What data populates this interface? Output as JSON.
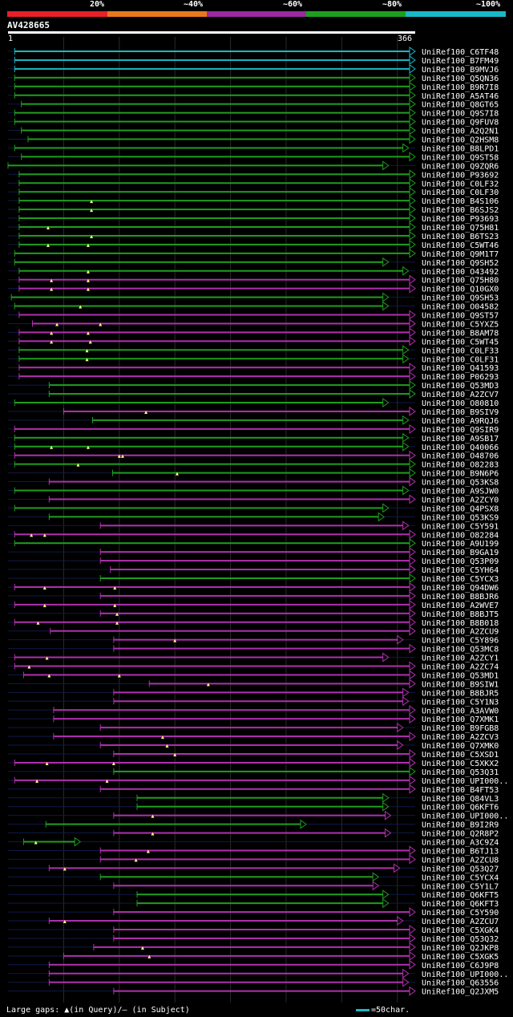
{
  "legend": {
    "labels": [
      "20%",
      "~40%",
      "~60%",
      "~80%",
      "~100%"
    ],
    "colors": [
      "#e8202a",
      "#e8781c",
      "#9a2aa0",
      "#1e9e1e",
      "#19b8c6"
    ]
  },
  "query": {
    "name": "AV428665",
    "start_label": "1",
    "end_label": "366"
  },
  "chart_data": {
    "type": "alignment",
    "query_length": 366,
    "color_classes": {
      "c": "#19b8c6",
      "g": "#1e9e1e",
      "m": "#b030b0"
    },
    "hits": [
      {
        "id": "UniRef100_C6TF48",
        "s": 6,
        "e": 366,
        "c": "c"
      },
      {
        "id": "UniRef100_B7FM49",
        "s": 6,
        "e": 366,
        "c": "c"
      },
      {
        "id": "UniRef100_B9MVJ6",
        "s": 6,
        "e": 366,
        "c": "c"
      },
      {
        "id": "UniRef100_Q5QN36",
        "s": 6,
        "e": 366,
        "c": "g"
      },
      {
        "id": "UniRef100_B9R7I8",
        "s": 6,
        "e": 366,
        "c": "g"
      },
      {
        "id": "UniRef100_A5AT46",
        "s": 6,
        "e": 366,
        "c": "g"
      },
      {
        "id": "UniRef100_Q8GT65",
        "s": 12,
        "e": 366,
        "c": "g"
      },
      {
        "id": "UniRef100_Q9S7I8",
        "s": 6,
        "e": 366,
        "c": "g"
      },
      {
        "id": "UniRef100_Q9FUV8",
        "s": 6,
        "e": 366,
        "c": "g"
      },
      {
        "id": "UniRef100_A2Q2N1",
        "s": 12,
        "e": 366,
        "c": "g"
      },
      {
        "id": "UniRef100_Q2HSM8",
        "s": 18,
        "e": 366,
        "c": "g"
      },
      {
        "id": "UniRef100_B8LPD1",
        "s": 6,
        "e": 360,
        "c": "g"
      },
      {
        "id": "UniRef100_Q9ST58",
        "s": 12,
        "e": 366,
        "c": "g"
      },
      {
        "id": "UniRef100_Q9ZQR6",
        "s": 0,
        "e": 342,
        "c": "g"
      },
      {
        "id": "UniRef100_P93692",
        "s": 10,
        "e": 366,
        "c": "g"
      },
      {
        "id": "UniRef100_C0LF32",
        "s": 10,
        "e": 366,
        "c": "g"
      },
      {
        "id": "UniRef100_C0LF30",
        "s": 10,
        "e": 366,
        "c": "g"
      },
      {
        "id": "UniRef100_B4S106",
        "s": 10,
        "e": 366,
        "c": "g",
        "gaps": [
          75
        ]
      },
      {
        "id": "UniRef100_B6SJS2",
        "s": 10,
        "e": 366,
        "c": "g",
        "gaps": [
          75
        ]
      },
      {
        "id": "UniRef100_P93693",
        "s": 10,
        "e": 366,
        "c": "g"
      },
      {
        "id": "UniRef100_Q75H81",
        "s": 10,
        "e": 366,
        "c": "g",
        "gaps": [
          36
        ]
      },
      {
        "id": "UniRef100_B6TS23",
        "s": 10,
        "e": 366,
        "c": "g",
        "gaps": [
          75
        ]
      },
      {
        "id": "UniRef100_C5WT46",
        "s": 10,
        "e": 366,
        "c": "g",
        "gaps": [
          36,
          72
        ]
      },
      {
        "id": "UniRef100_Q9M1T7",
        "s": 6,
        "e": 366,
        "c": "g"
      },
      {
        "id": "UniRef100_Q9SH52",
        "s": 6,
        "e": 342,
        "c": "g"
      },
      {
        "id": "UniRef100_O43492",
        "s": 10,
        "e": 360,
        "c": "g",
        "gaps": [
          72
        ]
      },
      {
        "id": "UniRef100_Q75H80",
        "s": 10,
        "e": 366,
        "c": "m",
        "gaps": [
          39,
          72
        ]
      },
      {
        "id": "UniRef100_Q10GX0",
        "s": 10,
        "e": 366,
        "c": "m",
        "gaps": [
          39,
          72
        ]
      },
      {
        "id": "UniRef100_Q9SH53",
        "s": 3,
        "e": 342,
        "c": "g"
      },
      {
        "id": "UniRef100_O04582",
        "s": 6,
        "e": 342,
        "c": "g",
        "gaps": [
          65
        ]
      },
      {
        "id": "UniRef100_Q9ST57",
        "s": 10,
        "e": 366,
        "c": "m"
      },
      {
        "id": "UniRef100_C5YXZ5",
        "s": 22,
        "e": 366,
        "c": "m",
        "gaps": [
          44,
          83
        ]
      },
      {
        "id": "UniRef100_B8AM78",
        "s": 10,
        "e": 366,
        "c": "m",
        "gaps": [
          39,
          72
        ]
      },
      {
        "id": "UniRef100_C5WT45",
        "s": 10,
        "e": 366,
        "c": "m",
        "gaps": [
          39,
          74
        ]
      },
      {
        "id": "UniRef100_C0LF33",
        "s": 10,
        "e": 360,
        "c": "g",
        "gaps": [
          71
        ]
      },
      {
        "id": "UniRef100_C0LF31",
        "s": 10,
        "e": 360,
        "c": "g",
        "gaps": [
          71
        ]
      },
      {
        "id": "UniRef100_Q41593",
        "s": 10,
        "e": 366,
        "c": "m"
      },
      {
        "id": "UniRef100_P06293",
        "s": 10,
        "e": 366,
        "c": "m"
      },
      {
        "id": "UniRef100_Q53MD3",
        "s": 37,
        "e": 366,
        "c": "g"
      },
      {
        "id": "UniRef100_A2ZCV7",
        "s": 37,
        "e": 366,
        "c": "g"
      },
      {
        "id": "UniRef100_O80810",
        "s": 6,
        "e": 342,
        "c": "g"
      },
      {
        "id": "UniRef100_B9SIV9",
        "s": 50,
        "e": 366,
        "c": "m",
        "gaps": [
          124
        ]
      },
      {
        "id": "UniRef100_A9RQJ6",
        "s": 76,
        "e": 360,
        "c": "g"
      },
      {
        "id": "UniRef100_Q9SIR9",
        "s": 6,
        "e": 366,
        "c": "m"
      },
      {
        "id": "UniRef100_A9SB17",
        "s": 6,
        "e": 360,
        "c": "g"
      },
      {
        "id": "UniRef100_Q40066",
        "s": 6,
        "e": 360,
        "c": "g",
        "gaps": [
          39,
          72
        ]
      },
      {
        "id": "UniRef100_O48706",
        "s": 6,
        "e": 366,
        "c": "m",
        "gaps": [
          100,
          103
        ]
      },
      {
        "id": "UniRef100_O82283",
        "s": 6,
        "e": 366,
        "c": "g",
        "gaps": [
          63
        ]
      },
      {
        "id": "UniRef100_B9N6P6",
        "s": 94,
        "e": 366,
        "c": "g",
        "gaps": [
          152
        ]
      },
      {
        "id": "UniRef100_Q53KS8",
        "s": 37,
        "e": 366,
        "c": "m"
      },
      {
        "id": "UniRef100_A9SJW0",
        "s": 6,
        "e": 360,
        "c": "g"
      },
      {
        "id": "UniRef100_A2ZCY0",
        "s": 37,
        "e": 366,
        "c": "m"
      },
      {
        "id": "UniRef100_Q4PSX8",
        "s": 6,
        "e": 342,
        "c": "g"
      },
      {
        "id": "UniRef100_Q53KS9",
        "s": 37,
        "e": 338,
        "c": "g"
      },
      {
        "id": "UniRef100_C5Y591",
        "s": 83,
        "e": 360,
        "c": "m"
      },
      {
        "id": "UniRef100_O82284",
        "s": 6,
        "e": 366,
        "c": "m",
        "gaps": [
          21,
          33
        ]
      },
      {
        "id": "UniRef100_A9U199",
        "s": 6,
        "e": 366,
        "c": "g"
      },
      {
        "id": "UniRef100_B9GA19",
        "s": 83,
        "e": 366,
        "c": "m"
      },
      {
        "id": "UniRef100_Q53P09",
        "s": 83,
        "e": 366,
        "c": "m"
      },
      {
        "id": "UniRef100_C5YH64",
        "s": 92,
        "e": 366,
        "c": "m"
      },
      {
        "id": "UniRef100_C5YCX3",
        "s": 83,
        "e": 366,
        "c": "g"
      },
      {
        "id": "UniRef100_Q94DW6",
        "s": 6,
        "e": 366,
        "c": "m",
        "gaps": [
          33,
          96
        ]
      },
      {
        "id": "UniRef100_B8BJR6",
        "s": 83,
        "e": 366,
        "c": "m"
      },
      {
        "id": "UniRef100_A2WVE7",
        "s": 6,
        "e": 366,
        "c": "m",
        "gaps": [
          33,
          96
        ]
      },
      {
        "id": "UniRef100_B8BJT5",
        "s": 83,
        "e": 366,
        "c": "m",
        "gaps": [
          98
        ]
      },
      {
        "id": "UniRef100_B8B018",
        "s": 6,
        "e": 366,
        "c": "m",
        "gaps": [
          27,
          98
        ]
      },
      {
        "id": "UniRef100_A2ZCU9",
        "s": 38,
        "e": 366,
        "c": "m"
      },
      {
        "id": "UniRef100_C5Y896",
        "s": 95,
        "e": 355,
        "c": "m",
        "gaps": [
          150
        ]
      },
      {
        "id": "UniRef100_Q53MC8",
        "s": 95,
        "e": 366,
        "c": "m"
      },
      {
        "id": "UniRef100_A2ZCY1",
        "s": 6,
        "e": 342,
        "c": "m",
        "gaps": [
          35
        ]
      },
      {
        "id": "UniRef100_A2ZC74",
        "s": 6,
        "e": 366,
        "c": "m",
        "gaps": [
          19
        ]
      },
      {
        "id": "UniRef100_Q53MD1",
        "s": 14,
        "e": 366,
        "c": "m",
        "gaps": [
          37,
          100
        ]
      },
      {
        "id": "UniRef100_B9SIW1",
        "s": 127,
        "e": 366,
        "c": "m",
        "gaps": [
          180
        ]
      },
      {
        "id": "UniRef100_B8BJR5",
        "s": 95,
        "e": 360,
        "c": "m"
      },
      {
        "id": "UniRef100_C5Y1N3",
        "s": 95,
        "e": 360,
        "c": "m"
      },
      {
        "id": "UniRef100_A3AVW0",
        "s": 41,
        "e": 366,
        "c": "m"
      },
      {
        "id": "UniRef100_Q7XMK1",
        "s": 41,
        "e": 366,
        "c": "m"
      },
      {
        "id": "UniRef100_B9FGB8",
        "s": 83,
        "e": 355,
        "c": "m"
      },
      {
        "id": "UniRef100_A2ZCV3",
        "s": 41,
        "e": 366,
        "c": "m",
        "gaps": [
          139
        ]
      },
      {
        "id": "UniRef100_Q7XMK0",
        "s": 83,
        "e": 355,
        "c": "m",
        "gaps": [
          143
        ]
      },
      {
        "id": "UniRef100_C5XSD1",
        "s": 95,
        "e": 366,
        "c": "m",
        "gaps": [
          150
        ]
      },
      {
        "id": "UniRef100_C5XKX2",
        "s": 6,
        "e": 366,
        "c": "m",
        "gaps": [
          35,
          95
        ]
      },
      {
        "id": "UniRef100_Q53Q31",
        "s": 95,
        "e": 366,
        "c": "g"
      },
      {
        "id": "UniRef100_UPI000..",
        "s": 6,
        "e": 366,
        "c": "m",
        "gaps": [
          26,
          89
        ]
      },
      {
        "id": "UniRef100_B4FT53",
        "s": 83,
        "e": 366,
        "c": "m"
      },
      {
        "id": "UniRef100_Q84VL3",
        "s": 116,
        "e": 342,
        "c": "g"
      },
      {
        "id": "UniRef100_Q6KFT6",
        "s": 116,
        "e": 342,
        "c": "g"
      },
      {
        "id": "UniRef100_UPI000..",
        "s": 95,
        "e": 344,
        "c": "m",
        "gaps": [
          130
        ]
      },
      {
        "id": "UniRef100_B9I2R9",
        "s": 34,
        "e": 268,
        "c": "g"
      },
      {
        "id": "UniRef100_Q2R8P2",
        "s": 95,
        "e": 344,
        "c": "m",
        "gaps": [
          130
        ]
      },
      {
        "id": "UniRef100_A3C9Z4",
        "s": 14,
        "e": 65,
        "c": "g",
        "gaps": [
          25
        ]
      },
      {
        "id": "UniRef100_B6TJ13",
        "s": 83,
        "e": 366,
        "c": "m",
        "gaps": [
          126
        ]
      },
      {
        "id": "UniRef100_A2ZCU8",
        "s": 83,
        "e": 366,
        "c": "m",
        "gaps": [
          115
        ]
      },
      {
        "id": "UniRef100_Q53Q27",
        "s": 37,
        "e": 352,
        "c": "m",
        "gaps": [
          51
        ]
      },
      {
        "id": "UniRef100_C5YCX4",
        "s": 83,
        "e": 333,
        "c": "g"
      },
      {
        "id": "UniRef100_C5Y1L7",
        "s": 95,
        "e": 333,
        "c": "m"
      },
      {
        "id": "UniRef100_Q6KFT5",
        "s": 116,
        "e": 342,
        "c": "g"
      },
      {
        "id": "UniRef100_Q6KFT3",
        "s": 116,
        "e": 342,
        "c": "g"
      },
      {
        "id": "UniRef100_C5Y590",
        "s": 95,
        "e": 366,
        "c": "m"
      },
      {
        "id": "UniRef100_A2ZCU7",
        "s": 37,
        "e": 355,
        "c": "m",
        "gaps": [
          51
        ]
      },
      {
        "id": "UniRef100_C5XGK4",
        "s": 95,
        "e": 366,
        "c": "m"
      },
      {
        "id": "UniRef100_Q53Q32",
        "s": 95,
        "e": 366,
        "c": "m"
      },
      {
        "id": "UniRef100_Q2JKP8",
        "s": 77,
        "e": 366,
        "c": "m",
        "gaps": [
          121
        ]
      },
      {
        "id": "UniRef100_C5XGK5",
        "s": 50,
        "e": 366,
        "c": "m",
        "gaps": [
          127
        ]
      },
      {
        "id": "UniRef100_C6J9P8",
        "s": 37,
        "e": 366,
        "c": "m"
      },
      {
        "id": "UniRef100_UPI000..",
        "s": 37,
        "e": 360,
        "c": "m"
      },
      {
        "id": "UniRef100_Q63556",
        "s": 37,
        "e": 360,
        "c": "m"
      },
      {
        "id": "UniRef100_Q2JXM5",
        "s": 95,
        "e": 366,
        "c": "m"
      }
    ]
  },
  "footer": {
    "gaps_text": "Large gaps: ▲(in Query)/— (in Subject)",
    "scale_text": "=50char."
  }
}
